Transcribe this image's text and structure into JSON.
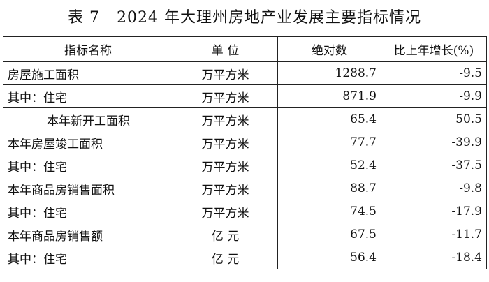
{
  "title": "表 7   2024 年大理州房地产业发展主要指标情况",
  "headers": {
    "indicator": "指标名称",
    "unit": "单      位",
    "absolute": "绝对数",
    "growth": "比上年增长(%)"
  },
  "rows": [
    {
      "name": "房屋施工面积",
      "indent": false,
      "unit": "万平方米",
      "value": "1288.7",
      "growth": "-9.5"
    },
    {
      "name": "其中：住宅",
      "indent": false,
      "unit": "万平方米",
      "value": "871.9",
      "growth": "-9.9"
    },
    {
      "name": "本年新开工面积",
      "indent": true,
      "unit": "万平方米",
      "value": "65.4",
      "growth": "50.5"
    },
    {
      "name": "本年房屋竣工面积",
      "indent": false,
      "unit": "万平方米",
      "value": "77.7",
      "growth": "-39.9"
    },
    {
      "name": "其中：住宅",
      "indent": false,
      "unit": "万平方米",
      "value": "52.4",
      "growth": "-37.5"
    },
    {
      "name": "本年商品房销售面积",
      "indent": false,
      "unit": "万平方米",
      "value": "88.7",
      "growth": "-9.8"
    },
    {
      "name": "其中：住宅",
      "indent": false,
      "unit": "万平方米",
      "value": "74.5",
      "growth": "-17.9"
    },
    {
      "name": "本年商品房销售额",
      "indent": false,
      "unit": "亿      元",
      "value": "67.5",
      "growth": "-11.7"
    },
    {
      "name": "其中：住宅",
      "indent": false,
      "unit": "亿      元",
      "value": "56.4",
      "growth": "-18.4"
    }
  ]
}
